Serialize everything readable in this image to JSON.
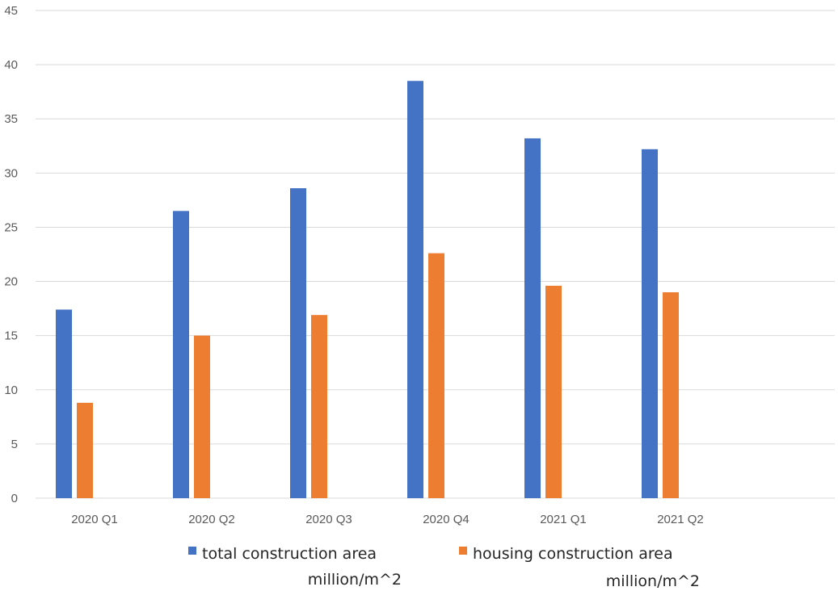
{
  "chart_data": {
    "type": "bar",
    "title": "",
    "xlabel": "",
    "ylabel": "",
    "categories": [
      "2020 Q1",
      "2020 Q2",
      "2020 Q3",
      "2020 Q4",
      "2021 Q1",
      "2021 Q2"
    ],
    "series": [
      {
        "name": "total construction area million/m^2",
        "legend_lines": [
          "total construction area",
          "million/m^2"
        ],
        "color": "#4472c4",
        "values": [
          17.4,
          26.5,
          28.6,
          38.5,
          33.2,
          32.2
        ]
      },
      {
        "name": "housing construction area million/m^2",
        "legend_lines": [
          "housing construction area",
          "million/m^2"
        ],
        "color": "#ed7d31",
        "values": [
          8.8,
          15.0,
          16.9,
          22.6,
          19.6,
          19.0
        ]
      }
    ],
    "ylim": [
      0,
      45
    ],
    "yticks": [
      "0",
      "5",
      "10",
      "15",
      "20",
      "25",
      "30",
      "35",
      "40",
      "45"
    ],
    "grid": true,
    "legend_position": "bottom"
  }
}
